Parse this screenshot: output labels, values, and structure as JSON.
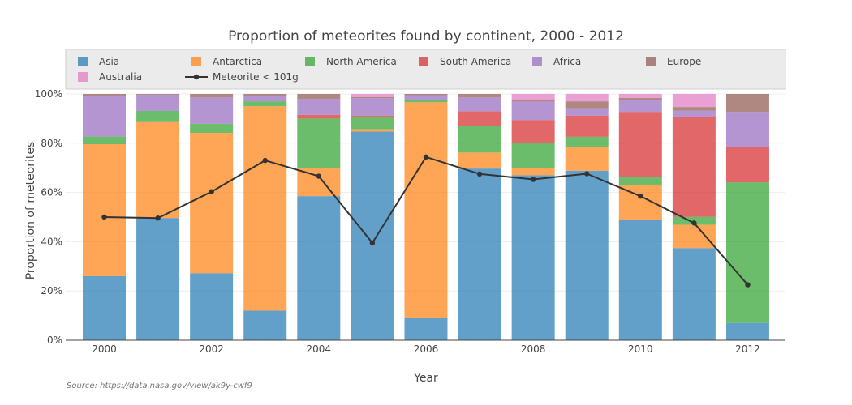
{
  "chart_data": {
    "type": "bar",
    "stacked": true,
    "title": "Proportion of meteorites found by continent, 2000 - 2012",
    "xlabel": "Year",
    "ylabel": "Proportion of meteorites",
    "ylim": [
      0,
      100
    ],
    "y_ticks": [
      "0%",
      "20%",
      "40%",
      "60%",
      "80%",
      "100%"
    ],
    "x_ticks": [
      "2000",
      "2002",
      "2004",
      "2006",
      "2008",
      "2010",
      "2012"
    ],
    "legend_position": "top",
    "grid": true,
    "source": "Source: https://data.nasa.gov/view/ak9y-cwf9",
    "categories": [
      2000,
      2001,
      2002,
      2003,
      2004,
      2005,
      2006,
      2007,
      2008,
      2009,
      2010,
      2011,
      2012
    ],
    "series": [
      {
        "name": "Asia",
        "color": "#1f77b4",
        "values": [
          26,
          49.6,
          27.2,
          12,
          58.5,
          84.7,
          9,
          69.7,
          67,
          68.8,
          49,
          37.4,
          7
        ]
      },
      {
        "name": "Antarctica",
        "color": "#ff7f0e",
        "values": [
          53.6,
          39.3,
          57,
          83,
          11.5,
          1,
          87.6,
          6.5,
          2.8,
          9.5,
          13.9,
          9.5,
          0
        ]
      },
      {
        "name": "North America",
        "color": "#2ca02c",
        "values": [
          3.1,
          4.2,
          3.7,
          2,
          20,
          4.9,
          1,
          10.8,
          10.3,
          4.3,
          3.2,
          3.2,
          57.1
        ]
      },
      {
        "name": "South America",
        "color": "#d62728",
        "values": [
          0,
          0,
          0,
          0,
          1.5,
          0.6,
          0,
          5.9,
          9.3,
          8.6,
          26.6,
          40.7,
          14.3
        ]
      },
      {
        "name": "Africa",
        "color": "#9467bd",
        "values": [
          16.4,
          6.6,
          10.7,
          2.2,
          6.5,
          7.1,
          1.9,
          5.7,
          7.5,
          3,
          5,
          2.4,
          14.3
        ]
      },
      {
        "name": "Europe",
        "color": "#8c564b",
        "values": [
          0.9,
          0.3,
          1.4,
          0.8,
          2,
          0.4,
          0.5,
          1.4,
          0.5,
          2.8,
          0.7,
          1.5,
          7.3
        ]
      },
      {
        "name": "Australia",
        "color": "#e377c2",
        "values": [
          0,
          0,
          0,
          0,
          0,
          1.3,
          0,
          0,
          2.6,
          3,
          1.6,
          5.3,
          0
        ]
      }
    ],
    "line": {
      "name": "Meteorite < 101g",
      "color": "#333333",
      "values": [
        50,
        49.6,
        60.3,
        73,
        66.6,
        39.5,
        74.4,
        67.5,
        65.3,
        67.6,
        58.5,
        47.6,
        22.5
      ]
    }
  }
}
